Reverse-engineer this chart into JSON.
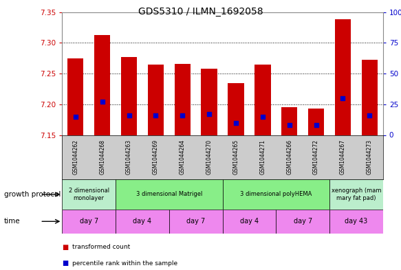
{
  "title": "GDS5310 / ILMN_1692058",
  "samples": [
    "GSM1044262",
    "GSM1044268",
    "GSM1044263",
    "GSM1044269",
    "GSM1044264",
    "GSM1044270",
    "GSM1044265",
    "GSM1044271",
    "GSM1044266",
    "GSM1044272",
    "GSM1044267",
    "GSM1044273"
  ],
  "transformed_count": [
    7.275,
    7.313,
    7.277,
    7.265,
    7.266,
    7.258,
    7.234,
    7.265,
    7.195,
    7.193,
    7.338,
    7.272
  ],
  "base_value": 7.15,
  "percentile_rank": [
    15,
    27,
    16,
    16,
    16,
    17,
    10,
    15,
    8,
    8,
    30,
    16
  ],
  "ylim": [
    7.15,
    7.35
  ],
  "y2lim": [
    0,
    100
  ],
  "yticks": [
    7.15,
    7.2,
    7.25,
    7.3,
    7.35
  ],
  "y2ticks": [
    0,
    25,
    50,
    75,
    100
  ],
  "bar_color": "#cc0000",
  "dot_color": "#0000cc",
  "growth_protocol_groups": [
    {
      "label": "2 dimensional\nmonolayer",
      "start": 0,
      "end": 2,
      "color": "#bbeecc"
    },
    {
      "label": "3 dimensional Matrigel",
      "start": 2,
      "end": 8,
      "color": "#88ee88"
    },
    {
      "label": "3 dimensional polyHEMA",
      "start": 8,
      "end": 14,
      "color": "#88ee88"
    },
    {
      "label": "xenograph (mam\nmary fat pad)",
      "start": 14,
      "end": 18,
      "color": "#aaddbb"
    }
  ],
  "time_groups": [
    {
      "label": "day 7",
      "start": 0,
      "end": 2
    },
    {
      "label": "day 4",
      "start": 2,
      "end": 6
    },
    {
      "label": "day 7",
      "start": 6,
      "end": 10
    },
    {
      "label": "day 4",
      "start": 10,
      "end": 12
    },
    {
      "label": "day 7",
      "start": 12,
      "end": 16
    },
    {
      "label": "day 43",
      "start": 16,
      "end": 18
    }
  ],
  "legend_items": [
    {
      "label": "transformed count",
      "color": "#cc0000"
    },
    {
      "label": "percentile rank within the sample",
      "color": "#0000cc"
    }
  ],
  "grid_color": "#aaaaaa",
  "tick_color_left": "#cc0000",
  "tick_color_right": "#0000cc",
  "label_growth_protocol": "growth protocol",
  "label_time": "time",
  "bar_width": 0.6,
  "dot_size": 18,
  "sample_row_color": "#cccccc",
  "gp_color_light": "#bbeecc",
  "gp_color_dark": "#88ee88",
  "time_color": "#ee88ee"
}
